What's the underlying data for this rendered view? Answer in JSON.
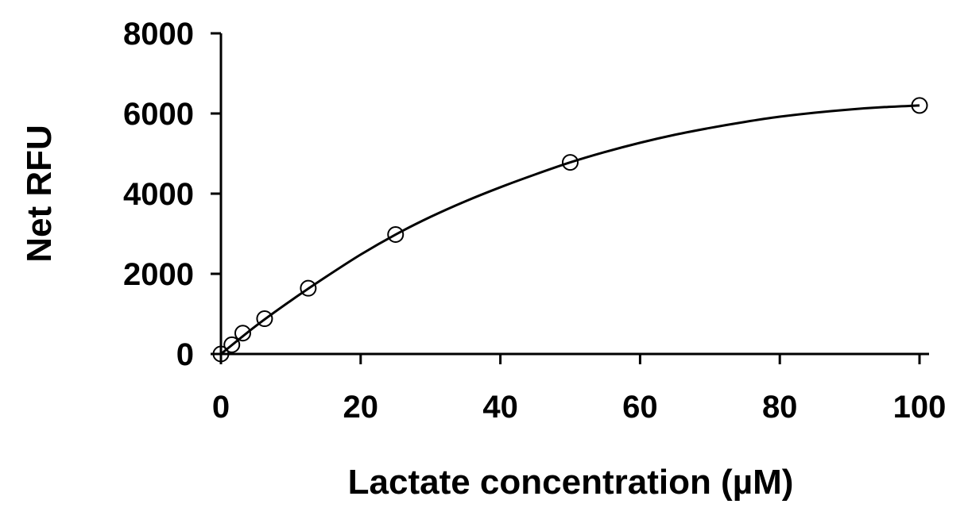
{
  "chart_data": {
    "type": "scatter",
    "title": "",
    "xlabel": "Lactate concentration (µM)",
    "ylabel": "Net RFU",
    "xlim": [
      0,
      100
    ],
    "ylim": [
      0,
      8000
    ],
    "x_ticks": [
      0,
      20,
      40,
      60,
      80,
      100
    ],
    "y_ticks": [
      0,
      2000,
      4000,
      6000,
      8000
    ],
    "x_tick_labels": [
      "0",
      "20",
      "40",
      "60",
      "80",
      "100"
    ],
    "y_tick_labels": [
      "0",
      "2000",
      "4000",
      "6000",
      "8000"
    ],
    "grid": false,
    "legend": "none",
    "series": [
      {
        "marker": "open-circle",
        "x": [
          0,
          1.5625,
          3.125,
          6.25,
          12.5,
          25,
          50,
          100
        ],
        "y": [
          0,
          230,
          520,
          880,
          1640,
          2980,
          4780,
          6200
        ]
      }
    ],
    "fit_curve": {
      "style": "solid-line",
      "x": [
        0,
        5,
        10,
        15,
        20,
        25,
        30,
        35,
        40,
        45,
        50,
        55,
        60,
        65,
        70,
        75,
        80,
        85,
        90,
        95,
        100
      ],
      "y": [
        0,
        700,
        1330,
        1920,
        2480,
        2980,
        3420,
        3810,
        4160,
        4480,
        4780,
        5040,
        5270,
        5470,
        5640,
        5790,
        5920,
        6020,
        6100,
        6160,
        6200
      ]
    }
  }
}
